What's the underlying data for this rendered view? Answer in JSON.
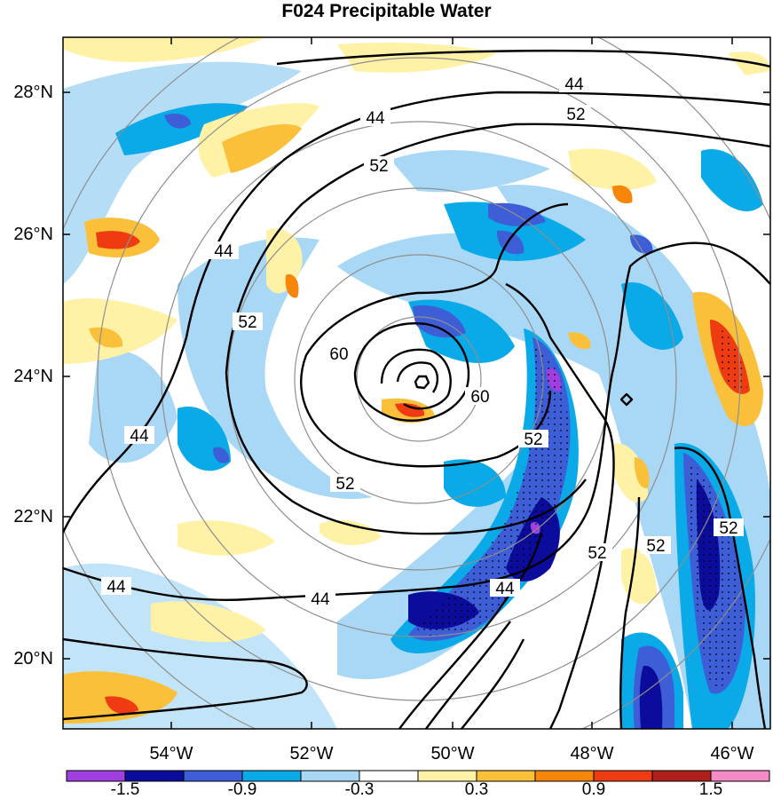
{
  "title": "F024 Precipitable Water",
  "map": {
    "lat_labels": [
      "28°N",
      "26°N",
      "24°N",
      "22°N",
      "20°N"
    ],
    "lon_labels": [
      "54°W",
      "52°W",
      "50°W",
      "48°W",
      "46°W"
    ],
    "contour_labels": [
      "44",
      "52",
      "60"
    ]
  },
  "colorbar": {
    "labels": [
      "-1.5",
      "-0.9",
      "-0.3",
      "0.3",
      "0.9",
      "1.5"
    ],
    "colors": [
      "#a13ee0",
      "#0c0c9c",
      "#3e5ed8",
      "#0aa9e8",
      "#a8d8f5",
      "#ffffff",
      "#fff1a6",
      "#fbc03a",
      "#f7860b",
      "#ee3b12",
      "#b0201a",
      "#f58bc6"
    ]
  },
  "colors": {
    "contour": "#000000",
    "range_rings": "#8f8f8f",
    "background": "#ffffff"
  }
}
